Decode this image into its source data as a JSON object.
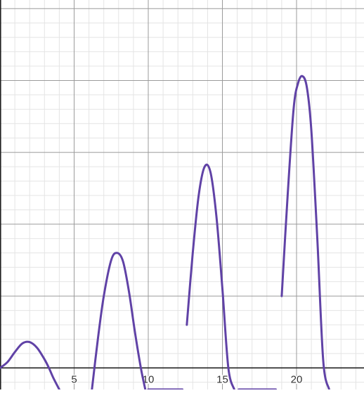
{
  "chart_data": {
    "type": "line",
    "title": "",
    "xlabel": "",
    "ylabel": "",
    "xlim": [
      0.0,
      24.55
    ],
    "ylim": [
      -1.5,
      25.6
    ],
    "grid": true,
    "x_major_step": 5,
    "x_minor_step": 1,
    "y_major_step": 5,
    "y_minor_step": 1,
    "x_tick_labels": [
      "5",
      "10",
      "15",
      "20"
    ],
    "series": [
      {
        "name": "",
        "color": "#6042a6",
        "x": [
          0.0,
          0.5,
          1.0,
          1.5,
          2.0,
          2.5,
          3.0,
          3.3,
          3.6,
          4.0,
          6.2,
          6.6,
          7.0,
          7.5,
          7.9,
          8.3,
          8.7,
          9.1,
          9.5,
          9.8,
          10.0,
          12.3,
          12.6,
          13.0,
          13.4,
          13.8,
          14.2,
          14.6,
          15.0,
          15.4,
          15.8,
          16.1,
          18.6,
          19.0,
          19.4,
          19.8,
          20.1,
          20.4,
          20.7,
          21.0,
          21.4,
          21.8,
          22.2
        ],
        "y": [
          0.0,
          0.4,
          1.1,
          1.7,
          1.8,
          1.4,
          0.6,
          0.0,
          -0.7,
          -1.5,
          -1.5,
          2.0,
          5.0,
          7.5,
          8.0,
          7.4,
          5.3,
          2.5,
          0.0,
          -1.5,
          -1.5,
          -1.5,
          3.0,
          8.0,
          12.0,
          14.0,
          13.6,
          10.5,
          5.5,
          0.0,
          -1.5,
          -1.5,
          -1.5,
          5.0,
          12.0,
          18.0,
          19.8,
          20.3,
          19.5,
          16.5,
          9.0,
          0.5,
          -1.5
        ]
      }
    ]
  }
}
